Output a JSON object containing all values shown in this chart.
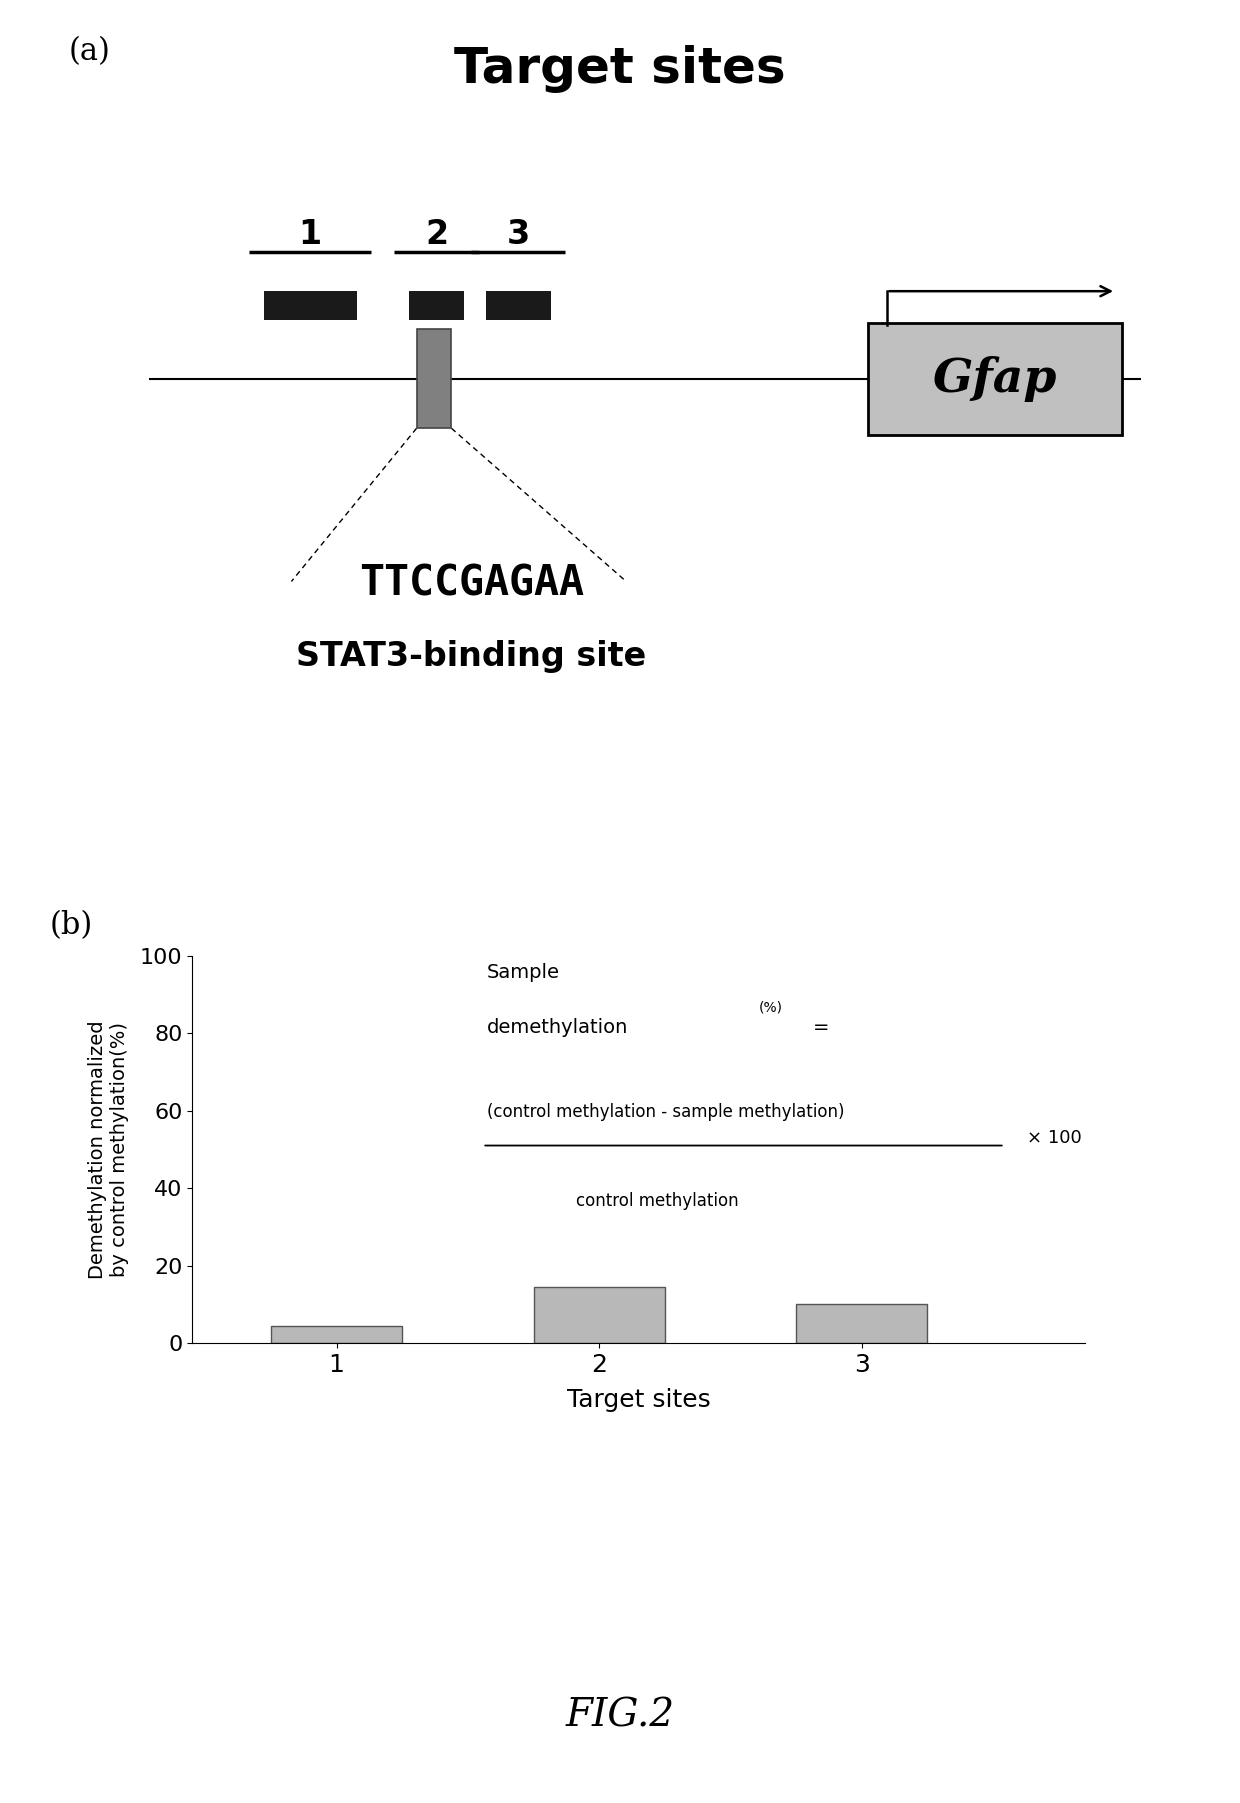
{
  "panel_a_title": "Target sites",
  "dna_sequence": "TTCCGAGAA",
  "binding_site_label": "STAT3-binding site",
  "gene_label": "Gfap",
  "target_labels": [
    "1",
    "2",
    "3"
  ],
  "bar_values": [
    4.5,
    14.5,
    10.0
  ],
  "bar_color": "#b8b8b8",
  "bar_edge_color": "#555555",
  "bar_positions": [
    1,
    2,
    3
  ],
  "bar_width": 0.5,
  "ylim": [
    0,
    100
  ],
  "yticks": [
    0,
    20,
    40,
    60,
    80,
    100
  ],
  "xlabel": "Target sites",
  "ylabel": "Demethylation normalized\nby control methylation(%)",
  "formula_numerator": "(control methylation - sample methylation)",
  "formula_denominator": "control methylation",
  "formula_x100": "× 100",
  "panel_a_label": "(a)",
  "panel_b_label": "(b)",
  "fig_label": "FIG.2",
  "background_color": "#ffffff",
  "line_color": "#000000",
  "dna_bar_color": "#1a1a1a",
  "rect_color": "#808080",
  "gfap_box_color": "#c0c0c0"
}
